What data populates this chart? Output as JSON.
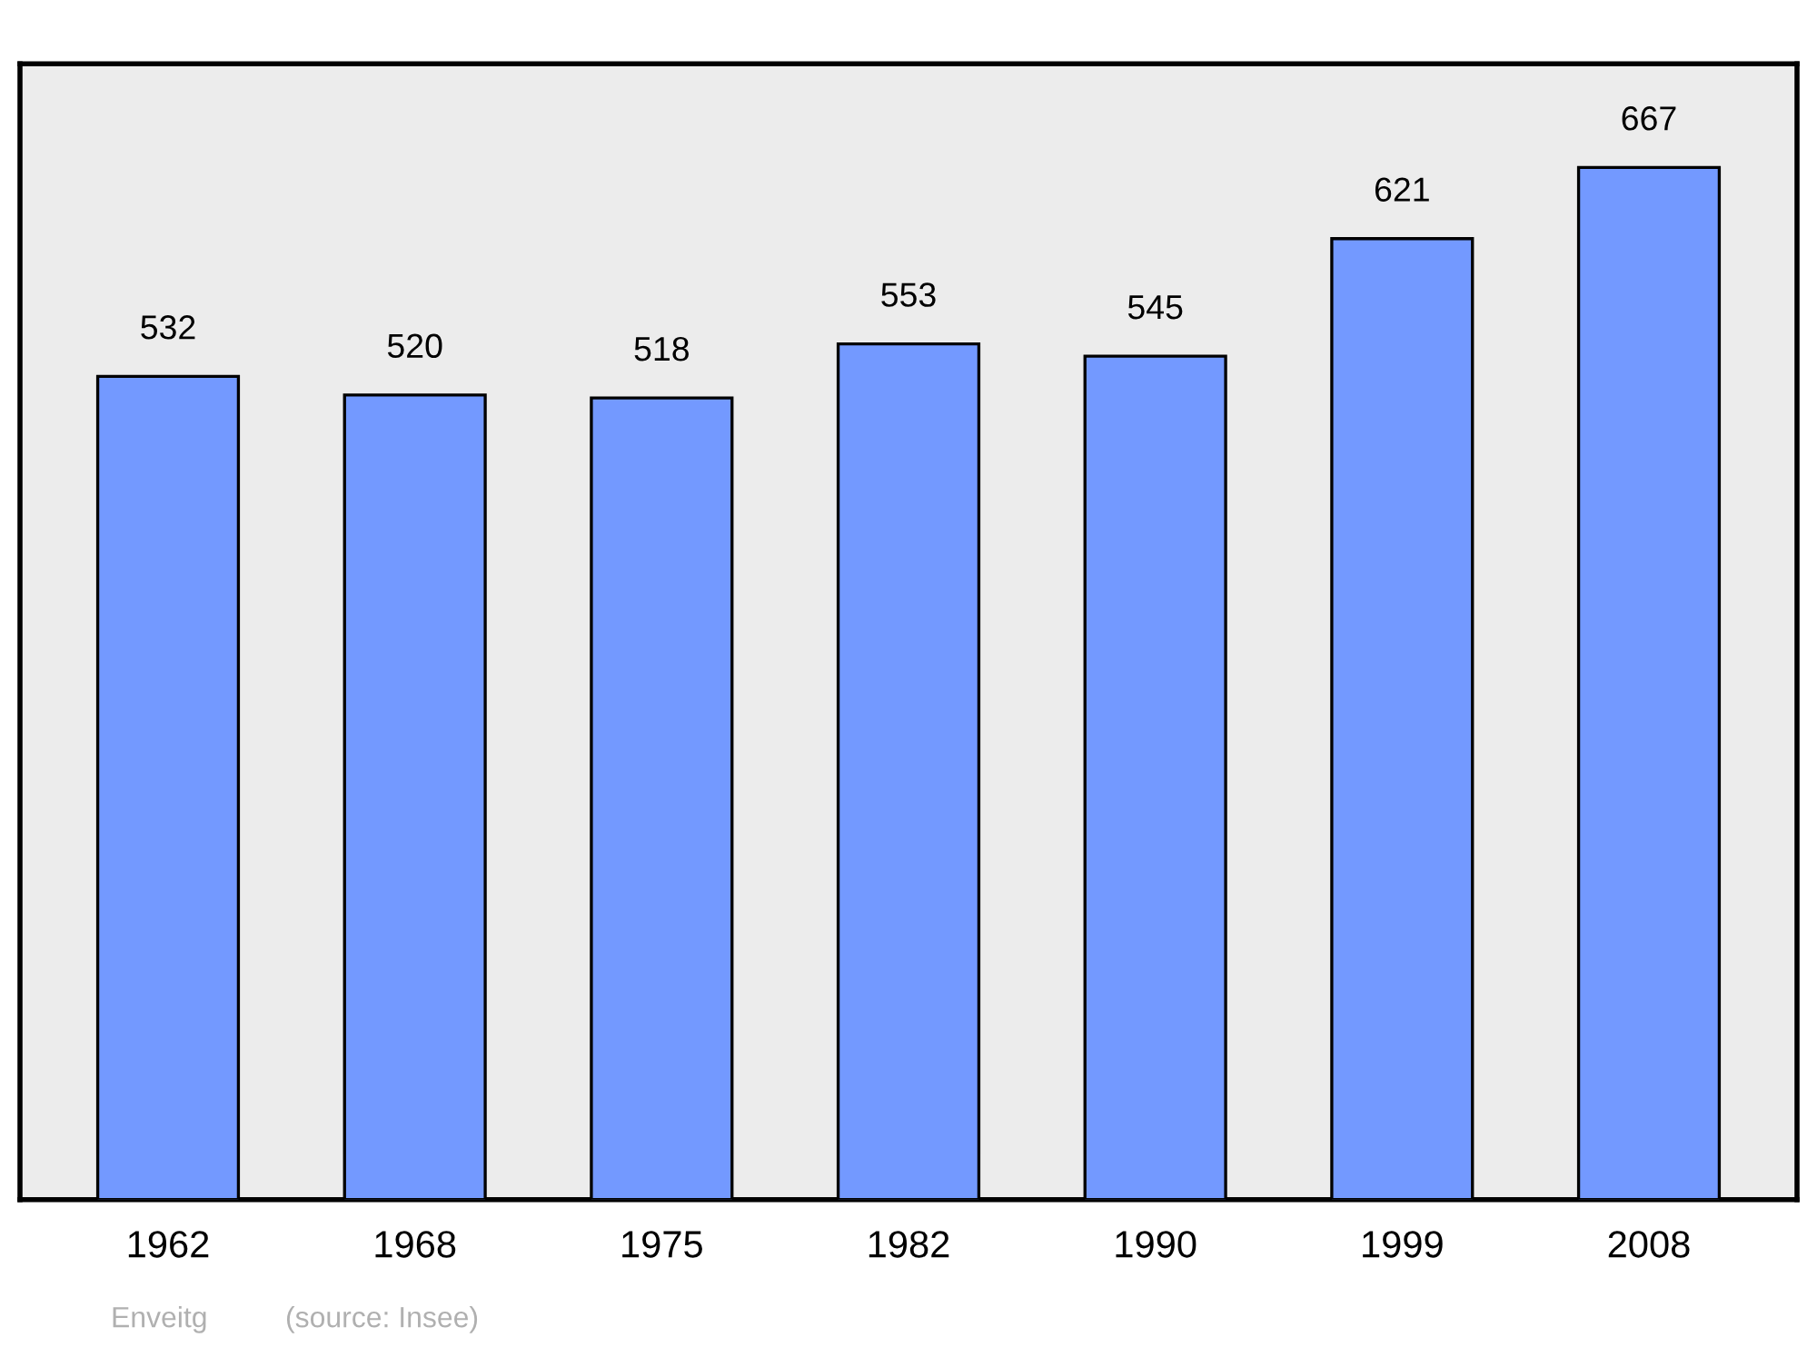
{
  "chart_data": {
    "type": "bar",
    "categories": [
      "1962",
      "1968",
      "1975",
      "1982",
      "1990",
      "1999",
      "2008"
    ],
    "values": [
      532,
      520,
      518,
      553,
      545,
      621,
      667
    ],
    "color": "#7399ff",
    "ylim": [
      0,
      734
    ],
    "data_labels": true,
    "grid": false,
    "legend": false,
    "tick_labels": "x",
    "annotations": [
      "Enveitg",
      "(source: Insee)"
    ]
  }
}
